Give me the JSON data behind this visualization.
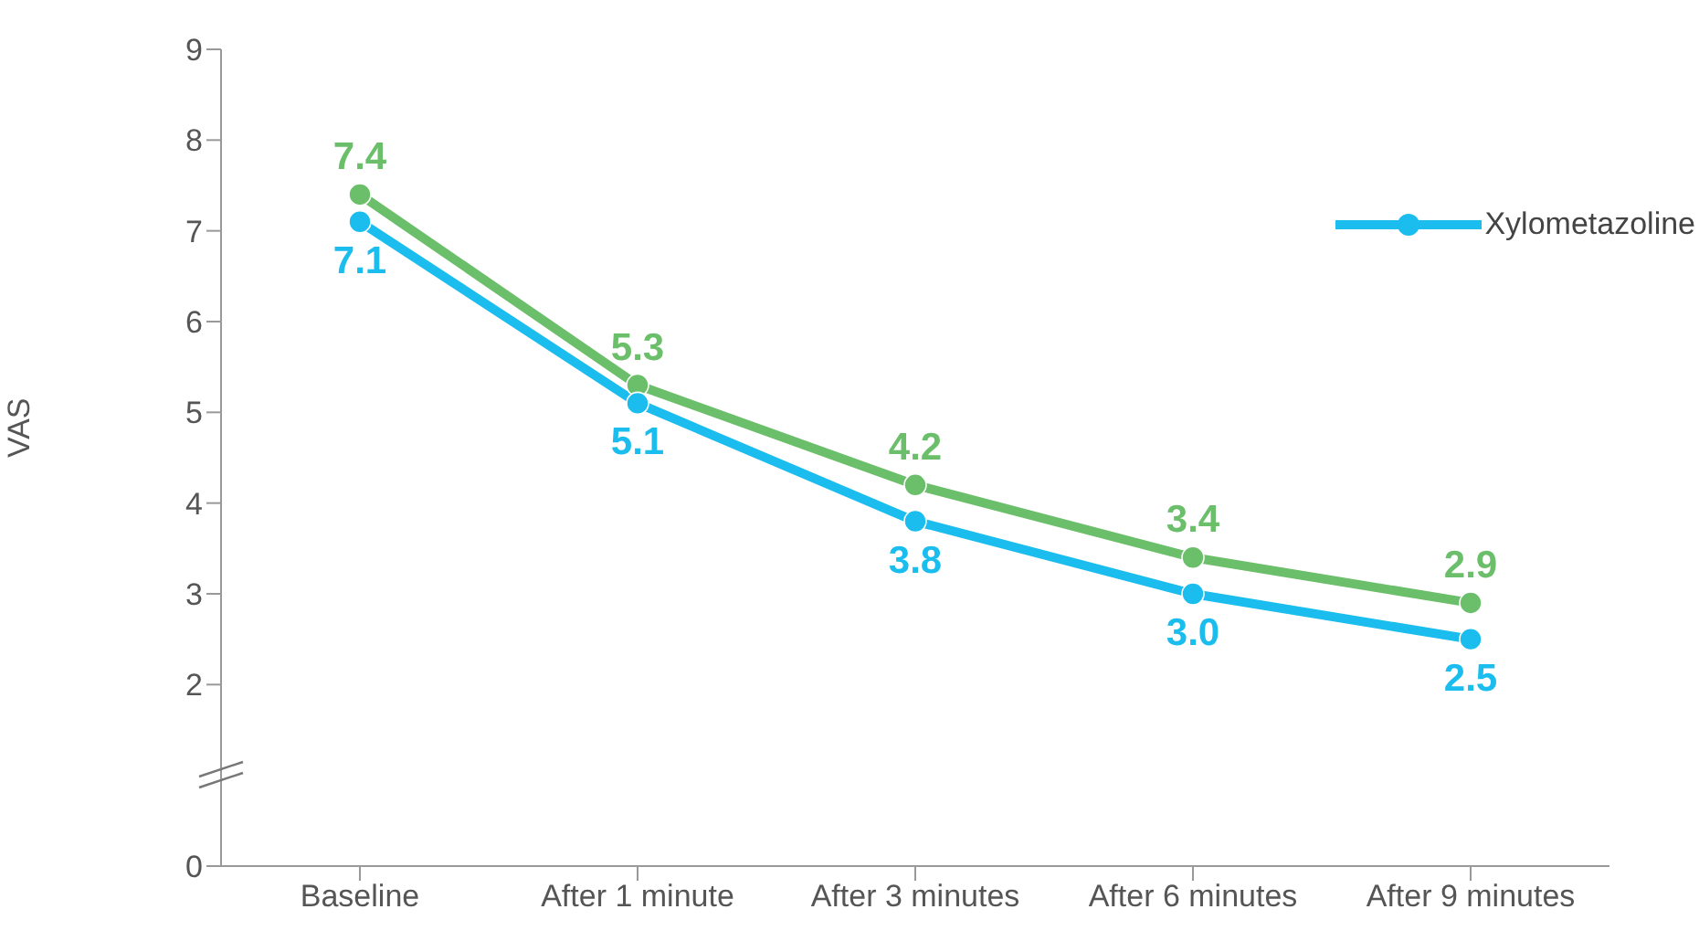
{
  "chart_data": {
    "type": "line",
    "ylabel": "VAS",
    "categories": [
      "Baseline",
      "After 1 minute",
      "After 3 minutes",
      "After 6 minutes",
      "After 9 minutes"
    ],
    "series": [
      {
        "color": "#6cbf6a",
        "values": [
          7.4,
          5.3,
          4.2,
          3.4,
          2.9
        ],
        "value_labels": [
          "7.4",
          "5.3",
          "4.2",
          "3.4",
          "2.9"
        ]
      },
      {
        "name": "Xylometazoline",
        "color": "#1bbdee",
        "values": [
          7.1,
          5.1,
          3.8,
          3.0,
          2.5
        ],
        "value_labels": [
          "7.1",
          "5.1",
          "3.8",
          "3.0",
          "2.5"
        ]
      }
    ],
    "ylim": [
      0,
      9
    ],
    "yticks": [
      0,
      2,
      3,
      4,
      5,
      6,
      7,
      8,
      9
    ],
    "legend": "right",
    "marker": "circle",
    "line_style": "solid",
    "grid": false
  }
}
